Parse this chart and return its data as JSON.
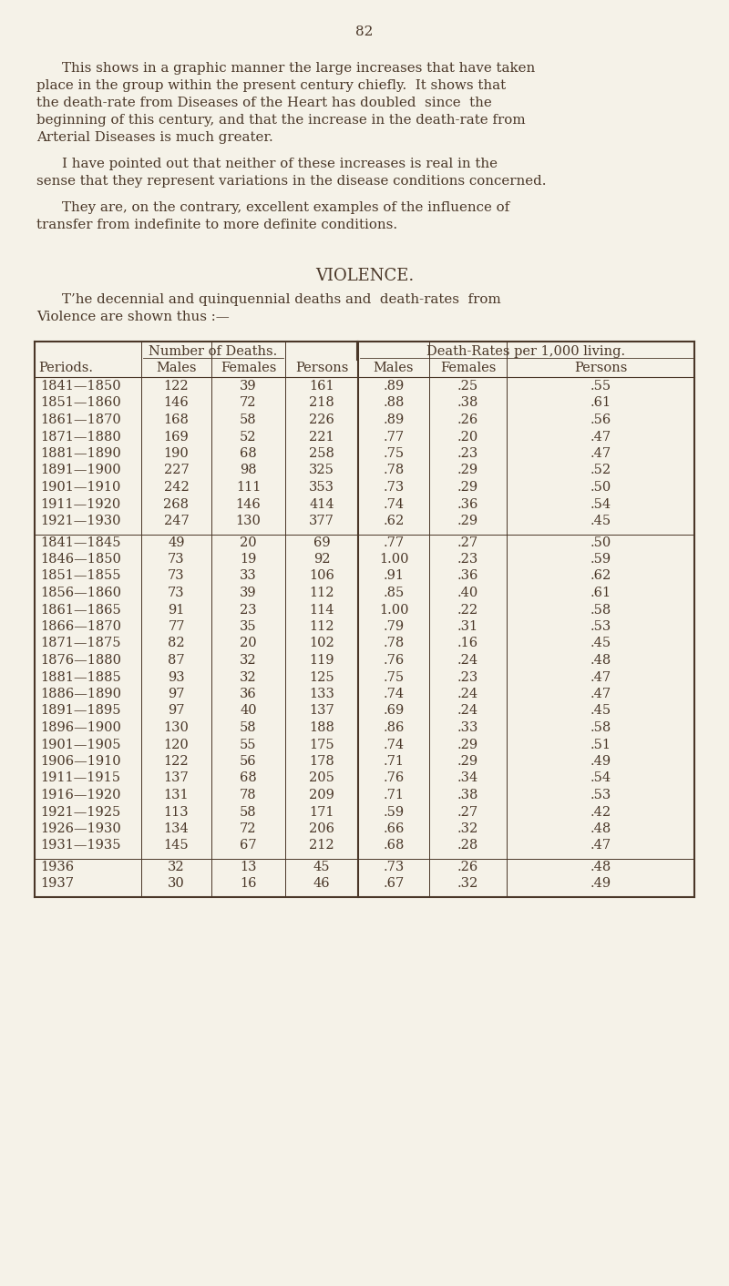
{
  "page_number": "82",
  "bg_color": "#f5f2e8",
  "text_color": "#4a3728",
  "para1": "This shows in a graphic manner the large increases that have taken place in the group within the present century chiefly.  It shows that the death-rate from Diseases of the Heart has doubled  since  the beginning of this century, and that the increase in the death-rate from Arterial Diseases is much greater.",
  "para2": "I have pointed out that neither of these increases is real in the sense that they represent variations in the disease conditions concerned.",
  "para3": "They are, on the contrary, excellent examples of the influence of transfer from indefinite to more definite conditions.",
  "section_title": "VIOLENCE.",
  "intro_text": "T’he decennial and quinquennial deaths and  death-rates  from Violence are shown thus :—",
  "col_header1": "Number of Deaths.",
  "col_header2": "Death-Rates per 1,000 living.",
  "sub_headers": [
    "Periods.",
    "Males",
    "Females",
    "Persons",
    "Males",
    "Females",
    "Persons"
  ],
  "decennial_rows": [
    [
      "1841—1850",
      "122",
      "39",
      "161",
      ".89",
      ".25",
      ".55"
    ],
    [
      "1851—1860",
      "146",
      "72",
      "218",
      ".88",
      ".38",
      ".61"
    ],
    [
      "1861—1870",
      "168",
      "58",
      "226",
      ".89",
      ".26",
      ".56"
    ],
    [
      "1871—1880",
      "169",
      "52",
      "221",
      ".77",
      ".20",
      ".47"
    ],
    [
      "1881—1890",
      "190",
      "68",
      "258",
      ".75",
      ".23",
      ".47"
    ],
    [
      "1891—1900",
      "227",
      "98",
      "325",
      ".78",
      ".29",
      ".52"
    ],
    [
      "1901—1910",
      "242",
      "111",
      "353",
      ".73",
      ".29",
      ".50"
    ],
    [
      "1911—1920",
      "268",
      "146",
      "414",
      ".74",
      ".36",
      ".54"
    ],
    [
      "1921—1930",
      "247",
      "130",
      "377",
      ".62",
      ".29",
      ".45"
    ]
  ],
  "quinquennial_rows": [
    [
      "1841—1845",
      "49",
      "20",
      "69",
      ".77",
      ".27",
      ".50"
    ],
    [
      "1846—1850",
      "73",
      "19",
      "92",
      "1.00",
      ".23",
      ".59"
    ],
    [
      "1851—1855",
      "73",
      "33",
      "106",
      ".91",
      ".36",
      ".62"
    ],
    [
      "1856—1860",
      "73",
      "39",
      "112",
      ".85",
      ".40",
      ".61"
    ],
    [
      "1861—1865",
      "91",
      "23",
      "114",
      "1.00",
      ".22",
      ".58"
    ],
    [
      "1866—1870",
      "77",
      "35",
      "112",
      ".79",
      ".31",
      ".53"
    ],
    [
      "1871—1875",
      "82",
      "20",
      "102",
      ".78",
      ".16",
      ".45"
    ],
    [
      "1876—1880",
      "87",
      "32",
      "119",
      ".76",
      ".24",
      ".48"
    ],
    [
      "1881—1885",
      "93",
      "32",
      "125",
      ".75",
      ".23",
      ".47"
    ],
    [
      "1886—1890",
      "97",
      "36",
      "133",
      ".74",
      ".24",
      ".47"
    ],
    [
      "1891—1895",
      "97",
      "40",
      "137",
      ".69",
      ".24",
      ".45"
    ],
    [
      "1896—1900",
      "130",
      "58",
      "188",
      ".86",
      ".33",
      ".58"
    ],
    [
      "1901—1905",
      "120",
      "55",
      "175",
      ".74",
      ".29",
      ".51"
    ],
    [
      "1906—1910",
      "122",
      "56",
      "178",
      ".71",
      ".29",
      ".49"
    ],
    [
      "1911—1915",
      "137",
      "68",
      "205",
      ".76",
      ".34",
      ".54"
    ],
    [
      "1916—1920",
      "131",
      "78",
      "209",
      ".71",
      ".38",
      ".53"
    ],
    [
      "1921—1925",
      "113",
      "58",
      "171",
      ".59",
      ".27",
      ".42"
    ],
    [
      "1926—1930",
      "134",
      "72",
      "206",
      ".66",
      ".32",
      ".48"
    ],
    [
      "1931—1935",
      "145",
      "67",
      "212",
      ".68",
      ".28",
      ".47"
    ]
  ],
  "individual_rows": [
    [
      "1936",
      "32",
      "13",
      "45",
      ".73",
      ".26",
      ".48"
    ],
    [
      "1937",
      "30",
      "16",
      "46",
      ".67",
      ".32",
      ".49"
    ]
  ]
}
